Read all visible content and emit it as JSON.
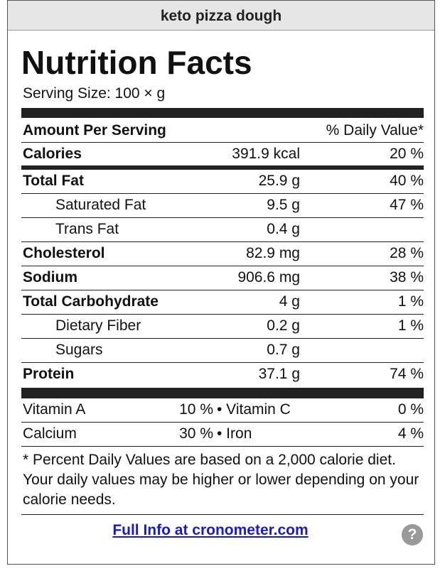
{
  "header": {
    "title": "keto pizza dough"
  },
  "label": {
    "title": "Nutrition Facts",
    "serving_size": "Serving Size: 100 × g",
    "amount_heading": "Amount Per Serving",
    "daily_value_heading": "% Daily Value*",
    "calories": {
      "name": "Calories",
      "amount": "391.9 kcal",
      "daily_value": "20 %"
    },
    "nutrients": [
      {
        "name": "Total Fat",
        "amount": "25.9 g",
        "daily_value": "40 %",
        "sub": [
          {
            "name": "Saturated Fat",
            "amount": "9.5 g",
            "daily_value": "47 %"
          },
          {
            "name": "Trans Fat",
            "amount": "0.4 g"
          }
        ]
      },
      {
        "name": "Cholesterol",
        "amount": "82.9 mg",
        "daily_value": "28 %"
      },
      {
        "name": "Sodium",
        "amount": "906.6 mg",
        "daily_value": "38 %"
      },
      {
        "name": "Total Carbohydrate",
        "amount": "4 g",
        "daily_value": "1 %",
        "sub": [
          {
            "name": "Dietary Fiber",
            "amount": "0.2 g",
            "daily_value": "1 %"
          },
          {
            "name": "Sugars",
            "amount": "0.7 g"
          }
        ]
      },
      {
        "name": "Protein",
        "amount": "37.1 g",
        "daily_value": "74 %"
      }
    ],
    "vitamins": [
      [
        {
          "name": "Vitamin A",
          "daily_value": "10 %"
        },
        {
          "name": "• Vitamin C",
          "daily_value": "0 %"
        }
      ],
      [
        {
          "name": "Calcium",
          "daily_value": "30 %"
        },
        {
          "name": "• Iron",
          "daily_value": "4 %"
        }
      ]
    ],
    "footnote": "* Percent Daily Values are based on a 2,000 calorie diet. Your daily values may be higher or lower depending on your calorie needs.",
    "link": "Full Info at cronometer.com",
    "help_icon": "?"
  }
}
